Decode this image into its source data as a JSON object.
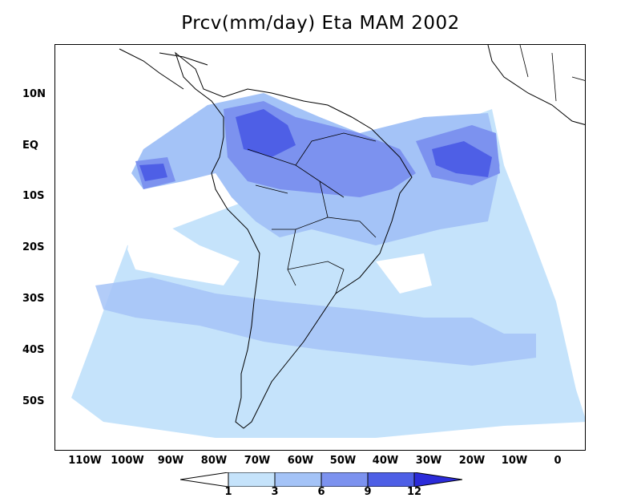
{
  "title": "Prcv(mm/day) Eta MAM 2002",
  "y_axis_labels": [
    "10N",
    "EQ",
    "10S",
    "20S",
    "30S",
    "40S",
    "50S"
  ],
  "x_axis_labels": [
    "110W",
    "100W",
    "90W",
    "80W",
    "70W",
    "60W",
    "50W",
    "40W",
    "30W",
    "20W",
    "10W",
    "0"
  ],
  "colorbar": {
    "labels": [
      "1",
      "3",
      "6",
      "9",
      "12"
    ],
    "colors": [
      "#ffffff",
      "#c5e3fb",
      "#a4c3f7",
      "#7c92ef",
      "#4e5fe6",
      "#2b2bd9"
    ]
  },
  "precip_colors": {
    "level1": "#c5e3fb",
    "level2": "#a4c3f7",
    "level3": "#7c92ef",
    "level4": "#4e5fe6"
  }
}
